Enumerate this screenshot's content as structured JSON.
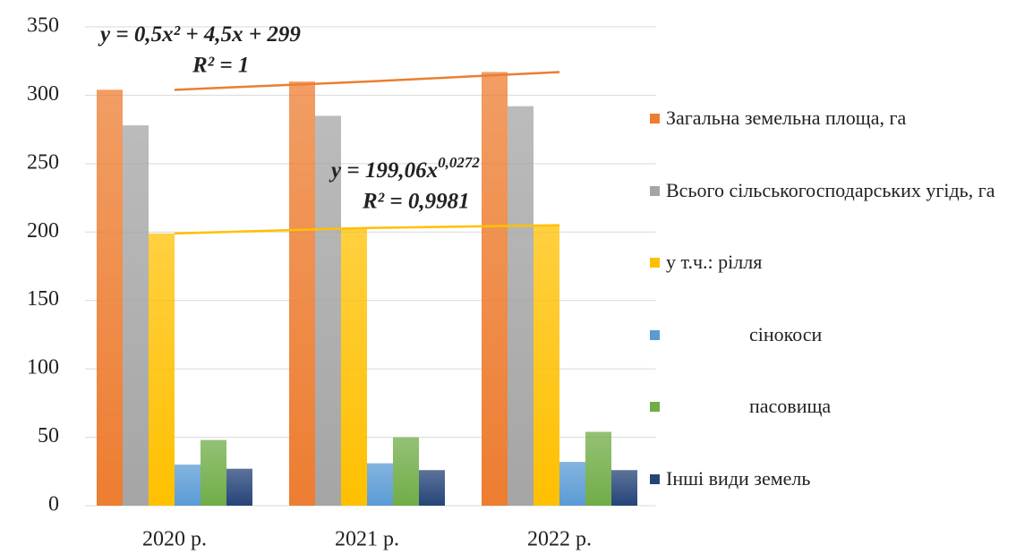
{
  "chart_data": {
    "type": "bar",
    "categories": [
      "2020 р.",
      "2021 р.",
      "2022 р."
    ],
    "series": [
      {
        "name": "Загальна земельна площа, га",
        "color": "#ed7d31",
        "values": [
          304,
          310,
          317
        ],
        "trendline": {
          "equation": "y = 0,5x² + 4,5x + 299",
          "r2": "R² = 1"
        }
      },
      {
        "name": "Всього сільськогосподарських угідь, га",
        "color": "#a5a5a5",
        "values": [
          278,
          285,
          292
        ]
      },
      {
        "name": "у т.ч.:  рілля",
        "color": "#ffc000",
        "values": [
          199,
          203,
          205
        ],
        "trendline": {
          "equation": "y = 199,06x",
          "exponent": "0,0272",
          "r2": "R² = 0,9981"
        }
      },
      {
        "name": "сінокоси",
        "color": "#5b9bd5",
        "values": [
          30,
          31,
          32
        ]
      },
      {
        "name": "пасовища",
        "color": "#70ad47",
        "values": [
          48,
          50,
          54
        ]
      },
      {
        "name": "Інші види земель",
        "color": "#264478",
        "values": [
          27,
          26,
          26
        ]
      }
    ],
    "ylim": [
      0,
      350
    ],
    "yticks": [
      0,
      50,
      100,
      150,
      200,
      250,
      300,
      350
    ],
    "grid": true,
    "legend": "right"
  }
}
